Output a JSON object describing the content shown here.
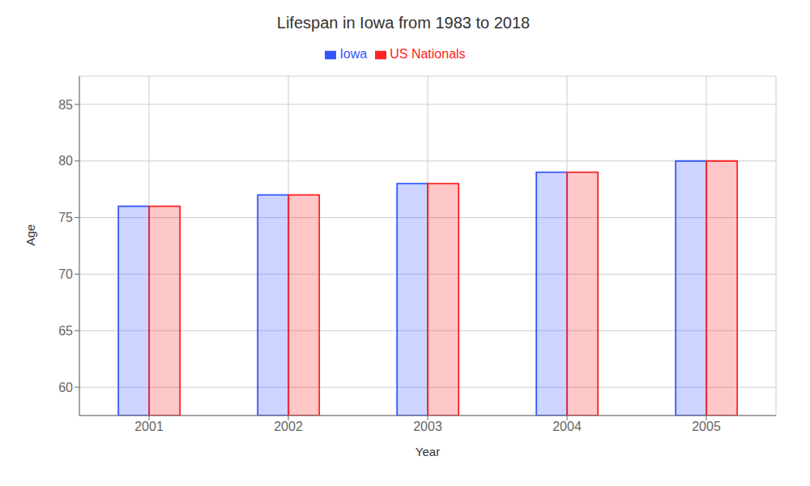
{
  "chart_data": {
    "type": "bar",
    "title": "Lifespan in Iowa from 1983 to 2018",
    "x_label": "Year",
    "y_label": "Age",
    "categories": [
      "2001",
      "2002",
      "2003",
      "2004",
      "2005"
    ],
    "series": [
      {
        "name": "Iowa",
        "color": "#3355ff",
        "values": [
          76.0,
          77.0,
          78.0,
          79.0,
          80.0
        ]
      },
      {
        "name": "US Nationals",
        "color": "#ff2222",
        "values": [
          76.0,
          77.0,
          78.0,
          79.0,
          80.0
        ]
      }
    ],
    "ylim": [
      57.5,
      87.5
    ],
    "yticks": [
      60,
      65,
      70,
      75,
      80,
      85
    ],
    "grid": true,
    "legend": "top"
  }
}
